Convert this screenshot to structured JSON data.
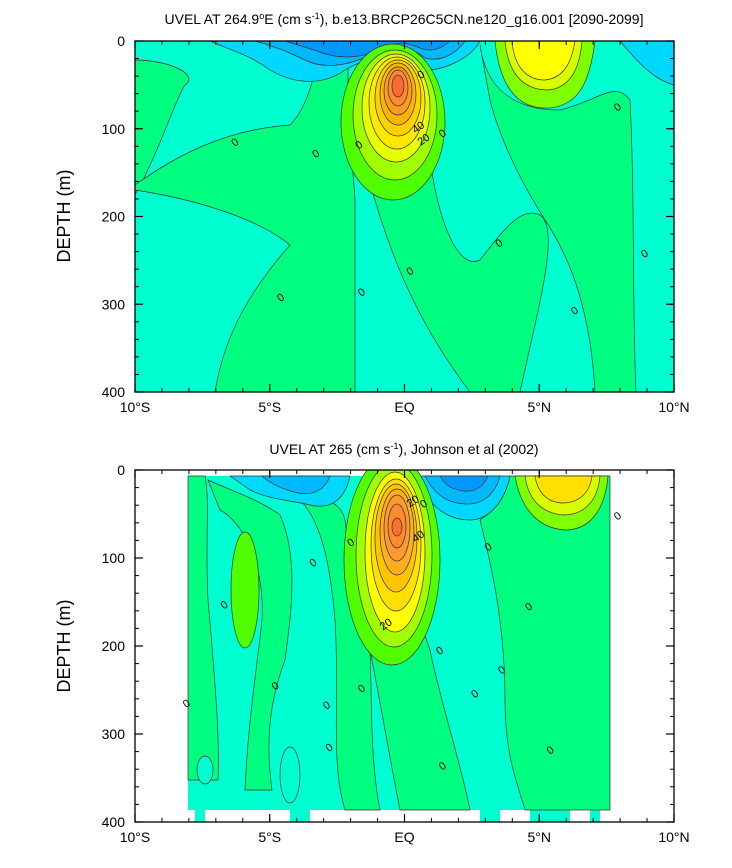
{
  "chart_data": [
    {
      "type": "contour",
      "title_prefix": "UVEL AT 264.9",
      "title_degree": "o",
      "title_suffix": "E (cm s",
      "title_exp": "-1",
      "title_rest": "), b.e13.BRCP26C5CN.ne120_g16.001 [2090-2099]",
      "ylabel": "DEPTH (m)",
      "xlim": [
        -10,
        10
      ],
      "ylim": [
        400,
        0
      ],
      "x_ticks": [
        {
          "v": -10,
          "label": "10°S"
        },
        {
          "v": -5,
          "label": "5°S"
        },
        {
          "v": 0,
          "label": "EQ"
        },
        {
          "v": 5,
          "label": "5°N"
        },
        {
          "v": 10,
          "label": "10°N"
        }
      ],
      "y_ticks": [
        {
          "v": 0,
          "label": "0"
        },
        {
          "v": 100,
          "label": "100"
        },
        {
          "v": 200,
          "label": "200"
        },
        {
          "v": 300,
          "label": "300"
        },
        {
          "v": 400,
          "label": "400"
        }
      ],
      "contour_labels": [
        {
          "x": -6.3,
          "y": 115,
          "text": "0"
        },
        {
          "x": -3.3,
          "y": 128,
          "text": "0"
        },
        {
          "x": -1.7,
          "y": 118,
          "text": "0"
        },
        {
          "x": 0.6,
          "y": 38,
          "text": "0"
        },
        {
          "x": 1.4,
          "y": 105,
          "text": "0"
        },
        {
          "x": 3.5,
          "y": 230,
          "text": "0"
        },
        {
          "x": 7.9,
          "y": 75,
          "text": "0"
        },
        {
          "x": 8.9,
          "y": 242,
          "text": "0"
        },
        {
          "x": -4.6,
          "y": 292,
          "text": "0"
        },
        {
          "x": -1.6,
          "y": 286,
          "text": "0"
        },
        {
          "x": 0.2,
          "y": 262,
          "text": "0"
        },
        {
          "x": 6.3,
          "y": 307,
          "text": "0"
        },
        {
          "x": 0.5,
          "y": 98,
          "text": "40"
        },
        {
          "x": 0.7,
          "y": 112,
          "text": "20"
        }
      ]
    },
    {
      "type": "contour",
      "title_prefix": "UVEL AT 265 (cm s",
      "title_exp": "-1",
      "title_rest": "), Johnson et al (2002)",
      "ylabel": "DEPTH (m)",
      "xlim": [
        -10,
        10
      ],
      "ylim": [
        400,
        0
      ],
      "x_ticks": [
        {
          "v": -10,
          "label": "10°S"
        },
        {
          "v": -5,
          "label": "5°S"
        },
        {
          "v": 0,
          "label": "EQ"
        },
        {
          "v": 5,
          "label": "5°N"
        },
        {
          "v": 10,
          "label": "10°N"
        }
      ],
      "y_ticks": [
        {
          "v": 0,
          "label": "0"
        },
        {
          "v": 100,
          "label": "100"
        },
        {
          "v": 200,
          "label": "200"
        },
        {
          "v": 300,
          "label": "300"
        },
        {
          "v": 400,
          "label": "400"
        }
      ],
      "contour_labels": [
        {
          "x": -8.1,
          "y": 265,
          "text": "0"
        },
        {
          "x": -6.7,
          "y": 153,
          "text": "0"
        },
        {
          "x": -4.8,
          "y": 245,
          "text": "0"
        },
        {
          "x": -3.4,
          "y": 105,
          "text": "0"
        },
        {
          "x": -2.9,
          "y": 267,
          "text": "0"
        },
        {
          "x": -2.8,
          "y": 315,
          "text": "0"
        },
        {
          "x": -2.0,
          "y": 82,
          "text": "0"
        },
        {
          "x": -1.6,
          "y": 248,
          "text": "0"
        },
        {
          "x": 1.3,
          "y": 205,
          "text": "0"
        },
        {
          "x": 1.4,
          "y": 336,
          "text": "0"
        },
        {
          "x": 2.6,
          "y": 254,
          "text": "0"
        },
        {
          "x": 3.1,
          "y": 87,
          "text": "0"
        },
        {
          "x": 3.6,
          "y": 227,
          "text": "0"
        },
        {
          "x": 4.6,
          "y": 155,
          "text": "0"
        },
        {
          "x": 5.4,
          "y": 318,
          "text": "0"
        },
        {
          "x": 7.9,
          "y": 52,
          "text": "0"
        },
        {
          "x": 0.3,
          "y": 35,
          "text": "20"
        },
        {
          "x": 0.7,
          "y": 38,
          "text": "0"
        },
        {
          "x": 0.5,
          "y": 75,
          "text": "40"
        },
        {
          "x": -0.7,
          "y": 175,
          "text": "20"
        }
      ]
    }
  ]
}
